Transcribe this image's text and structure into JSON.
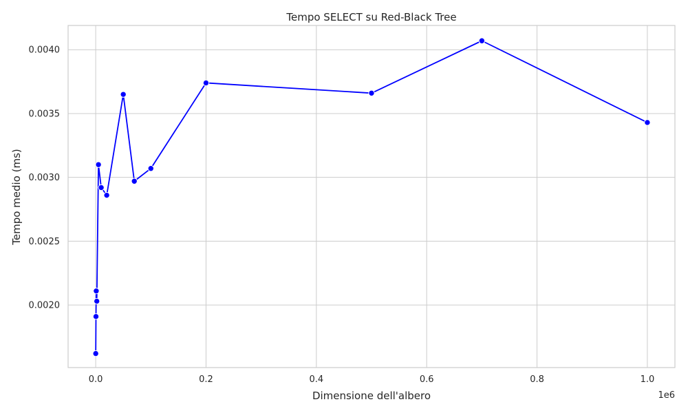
{
  "chart_data": {
    "type": "line",
    "title": "Tempo SELECT su Red-Black Tree",
    "xlabel": "Dimensione dell'albero",
    "ylabel": "Tempo medio (ms)",
    "x_offset_label": "1e6",
    "xlim": [
      -50000,
      1050000
    ],
    "ylim": [
      0.00151,
      0.00419
    ],
    "x_ticks": [
      0,
      200000,
      400000,
      600000,
      800000,
      1000000
    ],
    "x_tick_labels": [
      "0.0",
      "0.2",
      "0.4",
      "0.6",
      "0.8",
      "1.0"
    ],
    "y_ticks": [
      0.002,
      0.0025,
      0.003,
      0.0035,
      0.004
    ],
    "y_tick_labels": [
      "0.0020",
      "0.0025",
      "0.0030",
      "0.0035",
      "0.0040"
    ],
    "grid": true,
    "series_color": "#0000ff",
    "x": [
      100,
      500,
      1000,
      2000,
      5000,
      10000,
      20000,
      50000,
      70000,
      100000,
      200000,
      500000,
      700000,
      1000000
    ],
    "y": [
      0.00162,
      0.00191,
      0.00211,
      0.00203,
      0.0031,
      0.00292,
      0.00286,
      0.00365,
      0.00297,
      0.00307,
      0.00374,
      0.00366,
      0.00407,
      0.00343
    ]
  }
}
